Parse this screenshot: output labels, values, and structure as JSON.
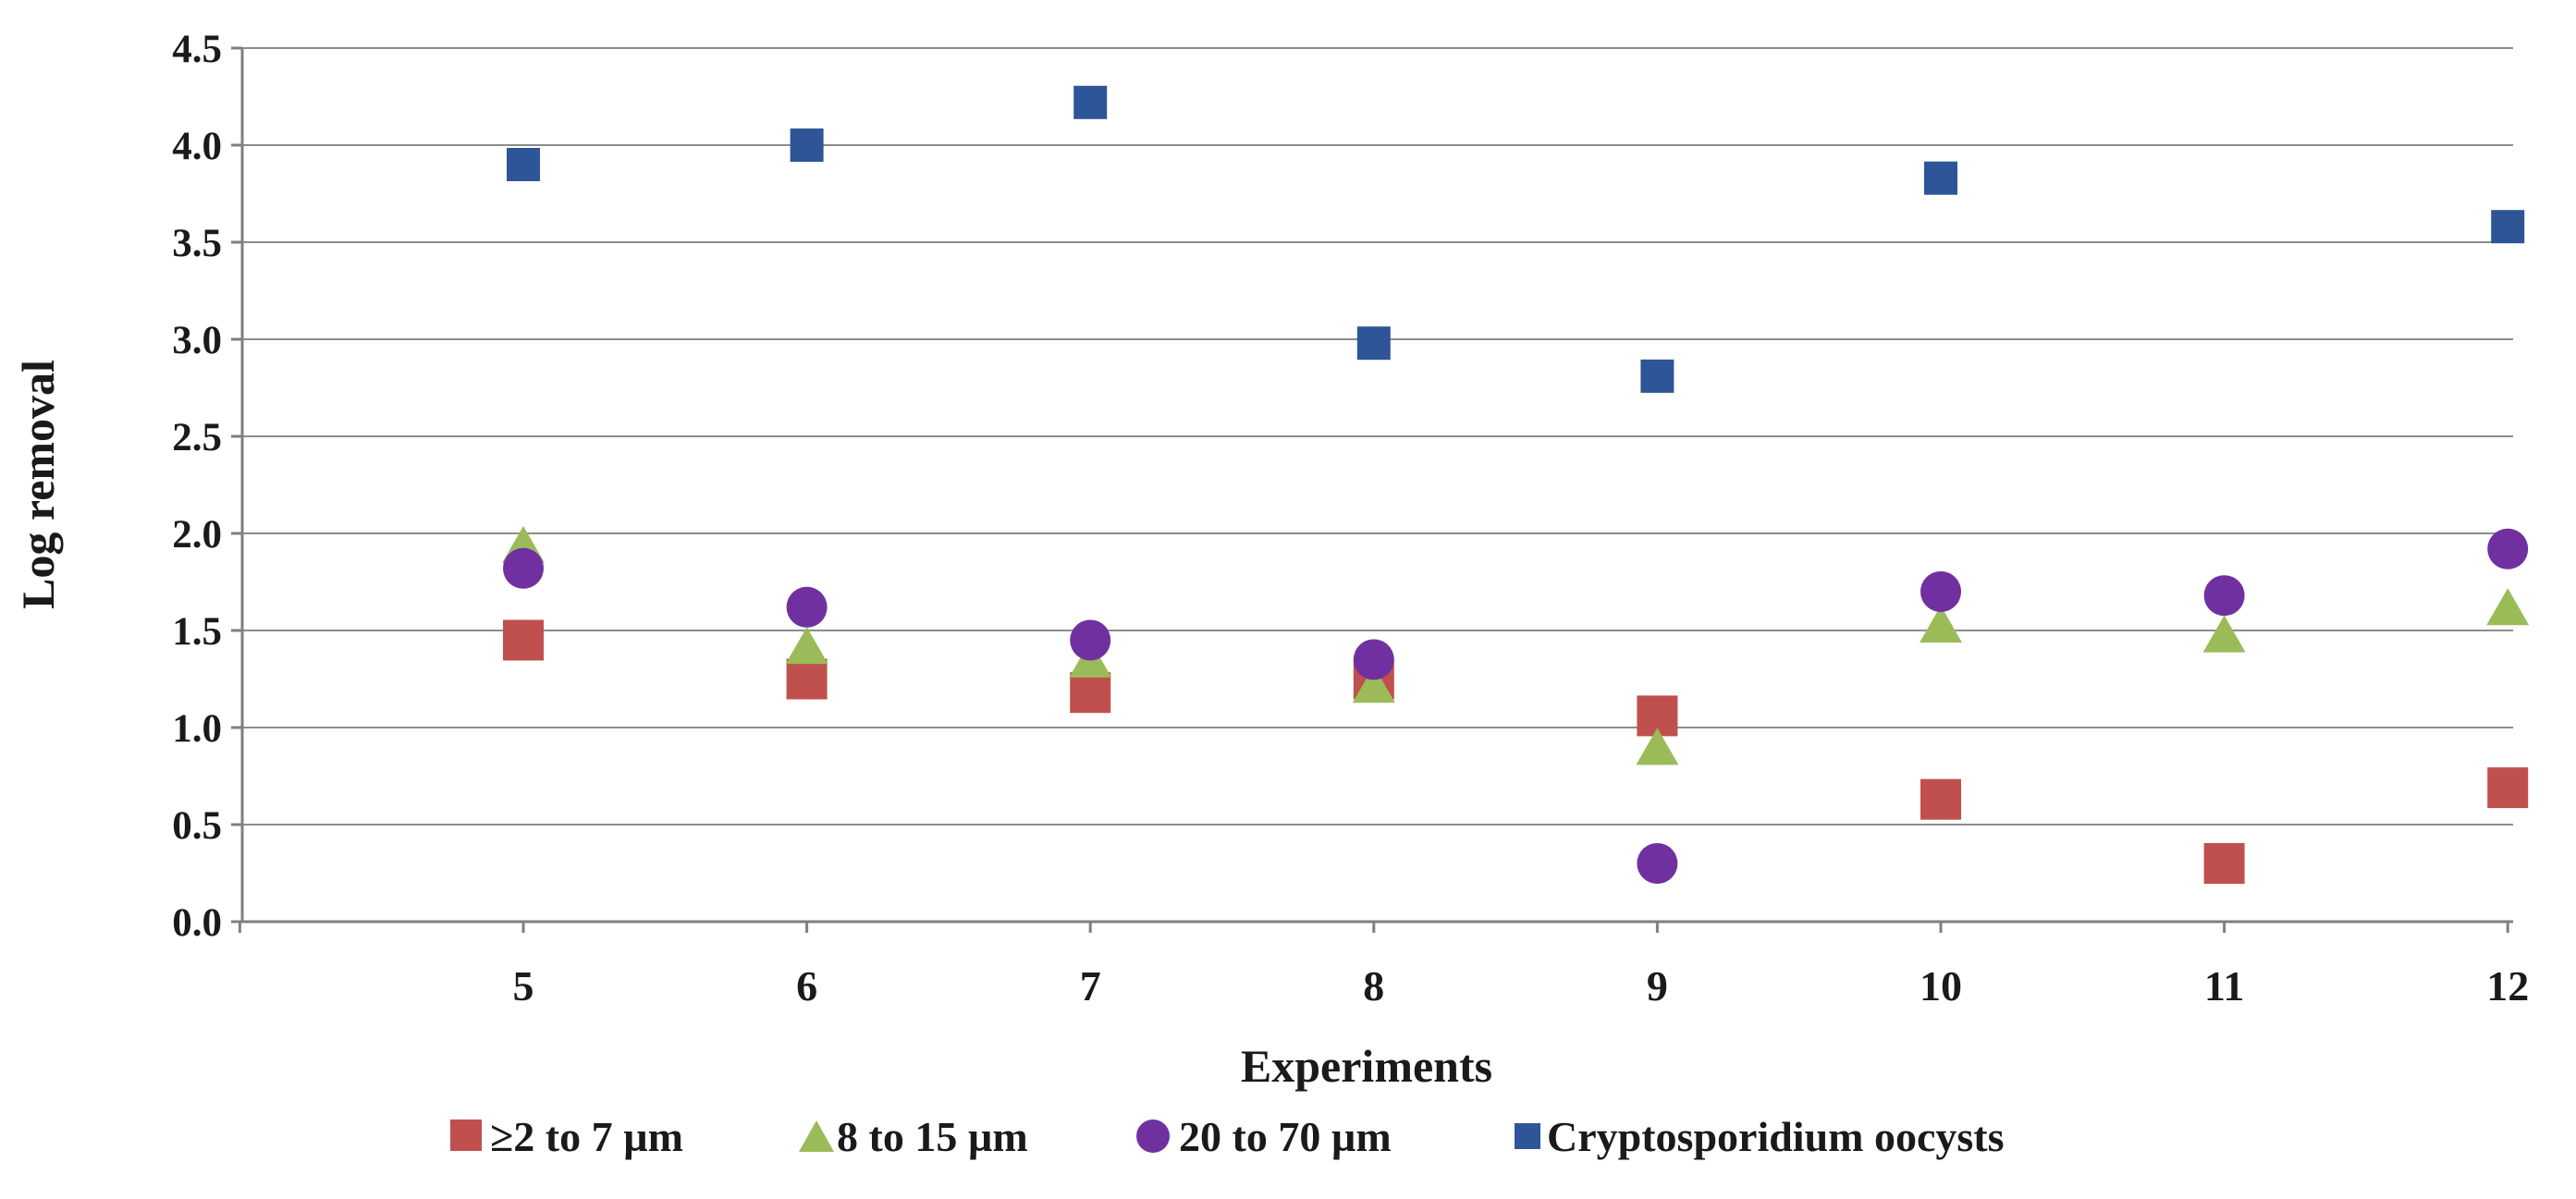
{
  "chart_data": {
    "type": "scatter",
    "title": "",
    "xlabel": "Experiments",
    "ylabel": "Log removal",
    "ylim": [
      0,
      4.5
    ],
    "yticks": [
      "0.0",
      "0.5",
      "1.0",
      "1.5",
      "2.0",
      "2.5",
      "3.0",
      "3.5",
      "4.0",
      "4.5"
    ],
    "categories": [
      "5",
      "6",
      "7",
      "8",
      "9",
      "10",
      "11",
      "12"
    ],
    "grid": true,
    "legend_position": "bottom",
    "series": [
      {
        "name": "≥2 to 7 µm",
        "marker": "square",
        "color": "#c0504d",
        "values": [
          1.45,
          1.25,
          1.18,
          1.25,
          1.06,
          0.63,
          0.3,
          0.69
        ]
      },
      {
        "name": "8 to 15 µm",
        "marker": "triangle",
        "color": "#9bbb59",
        "values": [
          1.92,
          1.4,
          1.33,
          1.2,
          0.88,
          1.51,
          1.46,
          1.6
        ]
      },
      {
        "name": "20 to 70 µm",
        "marker": "circle",
        "color": "#7030a0",
        "values": [
          1.82,
          1.62,
          1.45,
          1.35,
          0.3,
          1.7,
          1.68,
          1.92
        ]
      },
      {
        "name": "Cryptosporidium oocysts",
        "marker": "square-small",
        "color": "#2e5597",
        "values": [
          3.9,
          4.0,
          4.22,
          2.98,
          2.81,
          3.83,
          null,
          3.58
        ]
      }
    ]
  }
}
